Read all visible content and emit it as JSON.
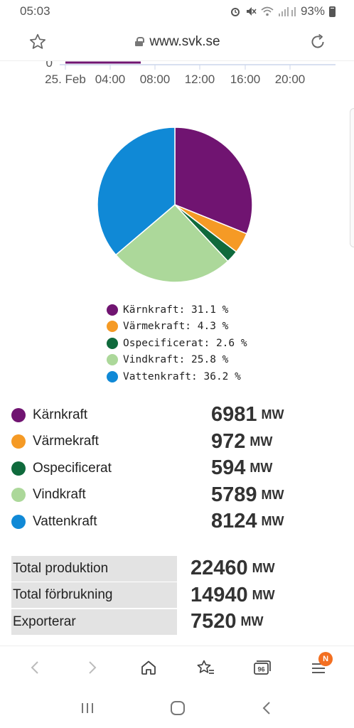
{
  "status_bar": {
    "time": "05:03",
    "battery": "93%",
    "icons": [
      "alarm-icon",
      "mute-icon",
      "wifi-icon",
      "signal-icon",
      "battery-icon"
    ]
  },
  "browser": {
    "url": "www.svk.se",
    "bookmark_icon": "star-icon",
    "reload_icon": "reload-icon",
    "tab_count": "96",
    "menu_badge": "N"
  },
  "top_chart": {
    "y_tick": "0",
    "x_ticks": [
      "25. Feb",
      "04:00",
      "08:00",
      "12:00",
      "16:00",
      "20:00"
    ]
  },
  "chart_data": {
    "type": "pie",
    "title": "",
    "labels": [
      "Kärnkraft",
      "Värmekraft",
      "Ospecificerat",
      "Vindkraft",
      "Vattenkraft"
    ],
    "values": [
      31.1,
      4.3,
      2.6,
      25.8,
      36.2
    ],
    "colors": [
      "#701471",
      "#f59a25",
      "#0f6a3c",
      "#acd89a",
      "#1089d6"
    ],
    "legend": [
      "Kärnkraft: 31.1 %",
      "Värmekraft: 4.3 %",
      "Ospecificerat: 2.6 %",
      "Vindkraft: 25.8 %",
      "Vattenkraft: 36.2 %"
    ],
    "legend_position": "bottom"
  },
  "production": [
    {
      "name": "Kärnkraft",
      "value": "6981",
      "unit": "MW",
      "color": "#701471"
    },
    {
      "name": "Värmekraft",
      "value": "972",
      "unit": "MW",
      "color": "#f59a25"
    },
    {
      "name": "Ospecificerat",
      "value": "594",
      "unit": "MW",
      "color": "#0f6a3c"
    },
    {
      "name": "Vindkraft",
      "value": "5789",
      "unit": "MW",
      "color": "#acd89a"
    },
    {
      "name": "Vattenkraft",
      "value": "8124",
      "unit": "MW",
      "color": "#1089d6"
    }
  ],
  "totals": [
    {
      "label": "Total produktion",
      "value": "22460",
      "unit": "MW"
    },
    {
      "label": "Total förbrukning",
      "value": "14940",
      "unit": "MW"
    },
    {
      "label": "Exporterar",
      "value": "7520",
      "unit": "MW"
    }
  ]
}
